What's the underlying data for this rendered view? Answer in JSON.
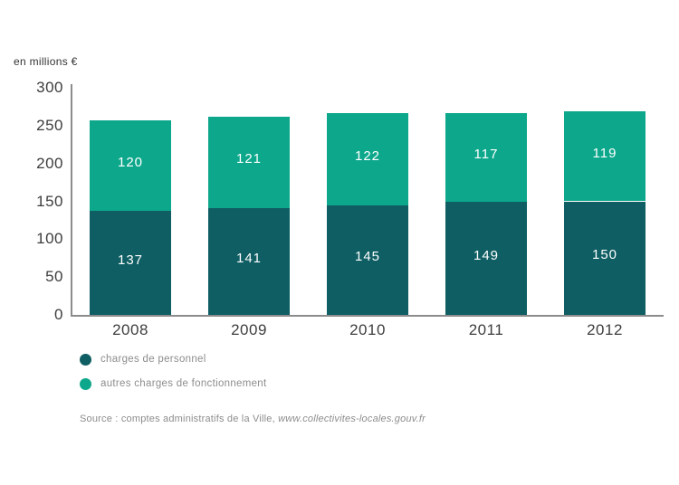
{
  "chart_data": {
    "type": "bar",
    "stacked": true,
    "title": "",
    "ylabel": "en millions €",
    "xlabel": "",
    "ylim": [
      0,
      300
    ],
    "yticks": [
      0,
      50,
      100,
      150,
      200,
      250,
      300
    ],
    "categories": [
      "2008",
      "2009",
      "2010",
      "2011",
      "2012"
    ],
    "series": [
      {
        "name": "charges de personnel",
        "color": "#0e5e63",
        "values": [
          137,
          141,
          145,
          149,
          150
        ]
      },
      {
        "name": "autres charges de fonctionnement",
        "color": "#0da88c",
        "values": [
          120,
          121,
          122,
          117,
          119
        ]
      }
    ],
    "totals": [
      257,
      262,
      267,
      266,
      269
    ],
    "value_labels": true,
    "value_label_color": "#ffffff",
    "grid": false,
    "legend_position": "bottom-left"
  },
  "axis": {
    "line_color": "#8c8c8c",
    "tick_text_color": "#3d3d3d"
  },
  "source": {
    "prefix": "Source : comptes administratifs de la Ville, ",
    "link": "www.collectivites-locales.gouv.fr"
  }
}
